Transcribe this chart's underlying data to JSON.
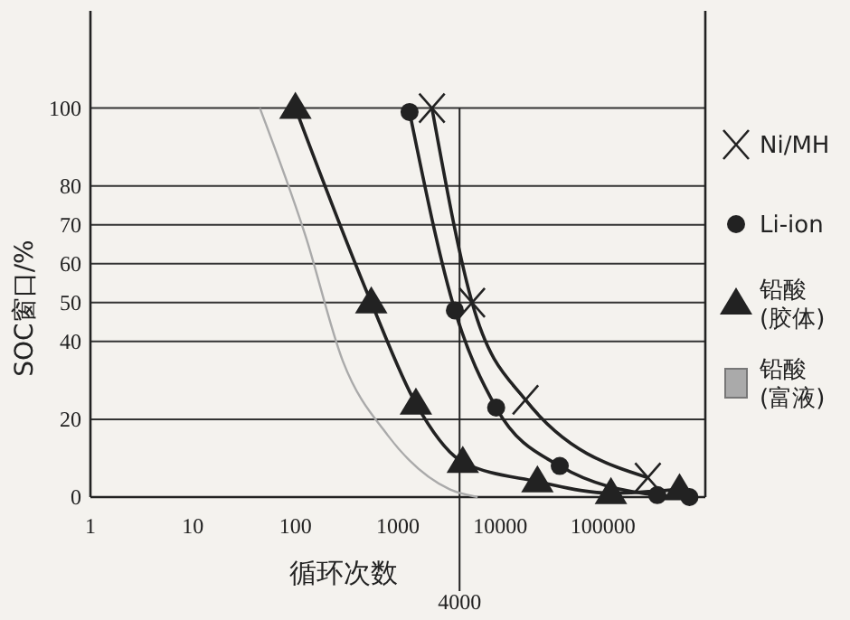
{
  "chart_data": {
    "type": "line",
    "xlabel": "循环次数",
    "ylabel": "SOC窗口/%",
    "log": "x",
    "xlim": [
      1,
      1000000
    ],
    "xticks": [
      1,
      10,
      100,
      1000,
      10000,
      100000
    ],
    "ylim": [
      0,
      125
    ],
    "yticks": [
      0,
      20,
      40,
      50,
      60,
      70,
      80,
      100
    ],
    "grid": "y",
    "legend": "right",
    "ref_lines": [
      {
        "axis": "x",
        "value": 4000,
        "label": "4000",
        "color": "#222222"
      }
    ],
    "series": [
      {
        "name": "Ni/MH",
        "color": "#222222",
        "marker": "cross",
        "x": [
          2150,
          5300,
          17600,
          275000
        ],
        "values": [
          100,
          50,
          25,
          5
        ]
      },
      {
        "name": "Li-ion",
        "color": "#222222",
        "marker": "circle",
        "x": [
          1300,
          3600,
          9100,
          38000,
          340000,
          700000
        ],
        "values": [
          99,
          48,
          23,
          8,
          0.5,
          0
        ]
      },
      {
        "name": "铅酸\n(胶体)",
        "color": "#222222",
        "marker": "triangle",
        "x": [
          100,
          550,
          1500,
          4300,
          23000,
          120000,
          560000
        ],
        "values": [
          100,
          50,
          24,
          9,
          4,
          1,
          2
        ]
      },
      {
        "name": "铅酸\n(富液)",
        "color": "#aaaaaa",
        "marker": "none",
        "x": [
          45,
          126,
          290,
          790,
          3200,
          6000
        ],
        "values": [
          100,
          67,
          35,
          16,
          2,
          0
        ]
      }
    ]
  }
}
